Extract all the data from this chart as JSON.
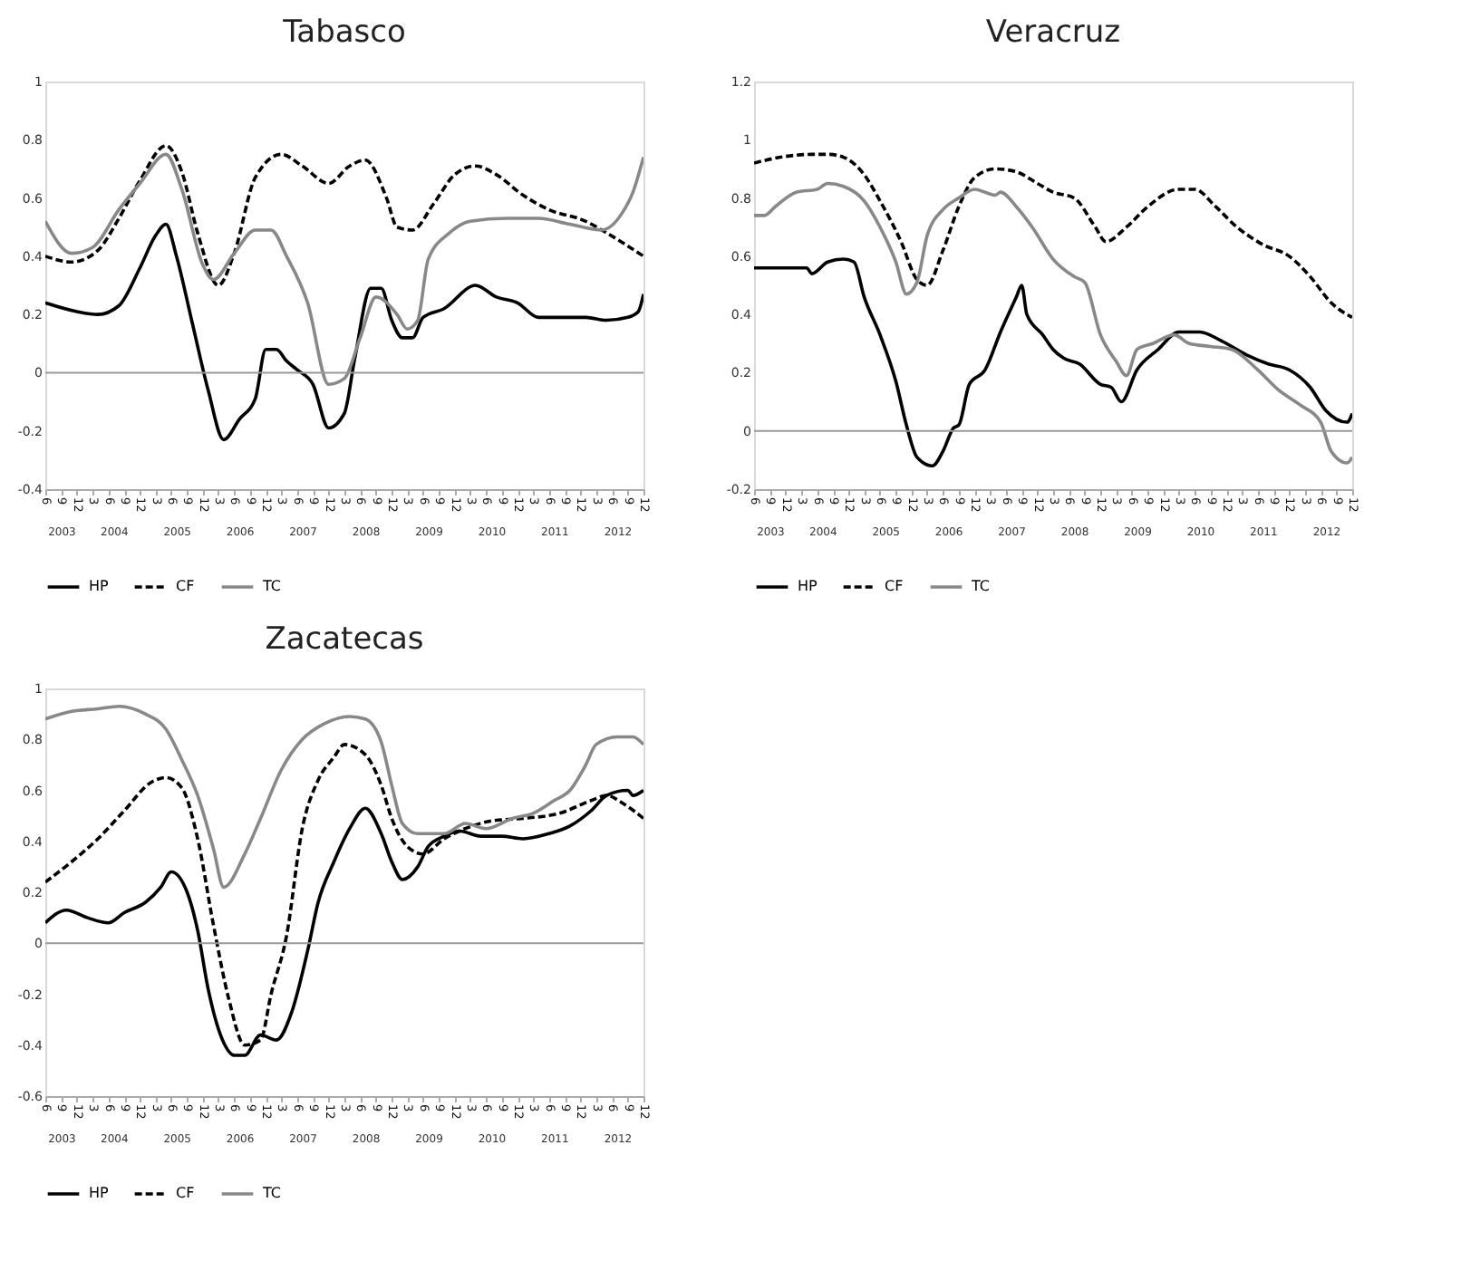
{
  "chart_data": [
    {
      "type": "line",
      "title": "Tabasco",
      "legend": "bottom",
      "ref_lines": [
        {
          "axis": "y",
          "value": 0
        }
      ],
      "xlim": [
        "2003-06",
        "2012-12"
      ],
      "ylim": [
        -0.4,
        1
      ],
      "yticks": [
        -0.4,
        -0.2,
        0,
        0.2,
        0.4,
        0.6,
        0.8,
        1
      ],
      "xticks": [
        {
          "value": "2003-06",
          "label": "6"
        },
        {
          "value": "2003-09",
          "label": "9"
        },
        {
          "value": "2003-12",
          "label": "12"
        },
        {
          "value": "2004-03",
          "label": "3"
        },
        {
          "value": "2004-06",
          "label": "6"
        },
        {
          "value": "2004-09",
          "label": "9"
        },
        {
          "value": "2004-12",
          "label": "12"
        },
        {
          "value": "2005-03",
          "label": "3"
        },
        {
          "value": "2005-06",
          "label": "6"
        },
        {
          "value": "2005-09",
          "label": "9"
        },
        {
          "value": "2005-12",
          "label": "12"
        },
        {
          "value": "2006-03",
          "label": "3"
        },
        {
          "value": "2006-06",
          "label": "6"
        },
        {
          "value": "2006-09",
          "label": "9"
        },
        {
          "value": "2006-12",
          "label": "12"
        },
        {
          "value": "2007-03",
          "label": "3"
        },
        {
          "value": "2007-06",
          "label": "6"
        },
        {
          "value": "2007-09",
          "label": "9"
        },
        {
          "value": "2007-12",
          "label": "12"
        },
        {
          "value": "2008-03",
          "label": "3"
        },
        {
          "value": "2008-06",
          "label": "6"
        },
        {
          "value": "2008-09",
          "label": "9"
        },
        {
          "value": "2008-12",
          "label": "12"
        },
        {
          "value": "2009-03",
          "label": "3"
        },
        {
          "value": "2009-06",
          "label": "6"
        },
        {
          "value": "2009-09",
          "label": "9"
        },
        {
          "value": "2009-12",
          "label": "12"
        },
        {
          "value": "2010-03",
          "label": "3"
        },
        {
          "value": "2010-06",
          "label": "6"
        },
        {
          "value": "2010-09",
          "label": "9"
        },
        {
          "value": "2010-12",
          "label": "12"
        },
        {
          "value": "2011-03",
          "label": "3"
        },
        {
          "value": "2011-06",
          "label": "6"
        },
        {
          "value": "2011-09",
          "label": "9"
        },
        {
          "value": "2011-12",
          "label": "12"
        },
        {
          "value": "2012-03",
          "label": "3"
        },
        {
          "value": "2012-06",
          "label": "6"
        },
        {
          "value": "2012-09",
          "label": "9"
        },
        {
          "value": "2012-12",
          "label": "12"
        }
      ],
      "x2lim": [
        "2003-06",
        "2012-12"
      ],
      "x2ticks": [
        {
          "value": "2003-09",
          "label": "2003"
        },
        {
          "value": "2004-07",
          "label": "2004"
        },
        {
          "value": "2005-07",
          "label": "2005"
        },
        {
          "value": "2006-07",
          "label": "2006"
        },
        {
          "value": "2007-07",
          "label": "2007"
        },
        {
          "value": "2008-07",
          "label": "2008"
        },
        {
          "value": "2009-07",
          "label": "2009"
        },
        {
          "value": "2010-07",
          "label": "2010"
        },
        {
          "value": "2011-07",
          "label": "2011"
        },
        {
          "value": "2012-07",
          "label": "2012"
        }
      ],
      "series": [
        {
          "name": "HP",
          "color": "#000000",
          "line_style": "solid",
          "x": [
            "2003-06",
            "2003-12",
            "2004-04",
            "2004-08",
            "2004-12",
            "2005-03",
            "2005-05",
            "2005-07",
            "2005-10",
            "2006-01",
            "2006-04",
            "2006-07",
            "2006-10",
            "2006-12",
            "2007-02",
            "2007-04",
            "2007-06",
            "2007-09",
            "2007-12",
            "2008-03",
            "2008-05",
            "2008-08",
            "2008-10",
            "2008-12",
            "2009-02",
            "2009-04",
            "2009-06",
            "2009-10",
            "2010-04",
            "2010-08",
            "2010-12",
            "2011-04",
            "2011-09",
            "2012-01",
            "2012-05",
            "2012-09",
            "2012-11",
            "2012-12"
          ],
          "values": [
            0.24,
            0.21,
            0.2,
            0.23,
            0.36,
            0.47,
            0.51,
            0.4,
            0.17,
            -0.06,
            -0.23,
            -0.16,
            -0.09,
            0.08,
            0.08,
            0.04,
            0.01,
            -0.04,
            -0.19,
            -0.14,
            0.05,
            0.29,
            0.29,
            0.18,
            0.12,
            0.12,
            0.19,
            0.22,
            0.3,
            0.26,
            0.24,
            0.19,
            0.19,
            0.19,
            0.18,
            0.19,
            0.21,
            0.27
          ]
        },
        {
          "name": "CF",
          "color": "#000000",
          "line_style": "dashed",
          "x": [
            "2003-06",
            "2003-11",
            "2004-04",
            "2004-08",
            "2004-12",
            "2005-05",
            "2005-08",
            "2005-11",
            "2006-03",
            "2006-06",
            "2006-10",
            "2007-03",
            "2007-07",
            "2007-12",
            "2008-04",
            "2008-07",
            "2008-11",
            "2009-01",
            "2009-04",
            "2009-08",
            "2009-12",
            "2010-04",
            "2010-08",
            "2011-01",
            "2011-06",
            "2012-01",
            "2012-05",
            "2012-12"
          ],
          "values": [
            0.4,
            0.38,
            0.42,
            0.53,
            0.66,
            0.78,
            0.69,
            0.48,
            0.3,
            0.41,
            0.67,
            0.75,
            0.71,
            0.65,
            0.71,
            0.73,
            0.6,
            0.5,
            0.49,
            0.58,
            0.68,
            0.71,
            0.68,
            0.61,
            0.56,
            0.52,
            0.48,
            0.4
          ]
        },
        {
          "name": "TC",
          "color": "#888888",
          "line_style": "solid",
          "x": [
            "2003-06",
            "2003-11",
            "2004-03",
            "2004-08",
            "2004-12",
            "2005-05",
            "2005-08",
            "2005-12",
            "2006-02",
            "2006-06",
            "2006-10",
            "2007-01",
            "2007-04",
            "2007-08",
            "2007-12",
            "2008-03",
            "2008-06",
            "2008-09",
            "2009-01",
            "2009-03",
            "2009-05",
            "2009-07",
            "2009-11",
            "2010-03",
            "2010-10",
            "2011-04",
            "2011-10",
            "2012-04",
            "2012-08",
            "2012-10",
            "2012-12"
          ],
          "values": [
            0.52,
            0.41,
            0.43,
            0.56,
            0.65,
            0.75,
            0.63,
            0.37,
            0.32,
            0.41,
            0.49,
            0.49,
            0.4,
            0.24,
            -0.04,
            -0.02,
            0.12,
            0.26,
            0.2,
            0.15,
            0.18,
            0.39,
            0.48,
            0.52,
            0.53,
            0.53,
            0.51,
            0.49,
            0.55,
            0.62,
            0.74
          ]
        }
      ]
    },
    {
      "type": "line",
      "title": "Veracruz",
      "legend": "bottom",
      "ref_lines": [
        {
          "axis": "y",
          "value": 0
        }
      ],
      "xlim": [
        "2003-06",
        "2012-12"
      ],
      "ylim": [
        -0.2,
        1.2
      ],
      "yticks": [
        -0.2,
        0,
        0.2,
        0.4,
        0.6,
        0.8,
        1,
        1.2
      ],
      "xticks": [
        {
          "value": "2003-06",
          "label": "6"
        },
        {
          "value": "2003-09",
          "label": "9"
        },
        {
          "value": "2003-12",
          "label": "12"
        },
        {
          "value": "2004-03",
          "label": "3"
        },
        {
          "value": "2004-06",
          "label": "6"
        },
        {
          "value": "2004-09",
          "label": "9"
        },
        {
          "value": "2004-12",
          "label": "12"
        },
        {
          "value": "2005-03",
          "label": "3"
        },
        {
          "value": "2005-06",
          "label": "6"
        },
        {
          "value": "2005-09",
          "label": "9"
        },
        {
          "value": "2005-12",
          "label": "12"
        },
        {
          "value": "2006-03",
          "label": "3"
        },
        {
          "value": "2006-06",
          "label": "6"
        },
        {
          "value": "2006-09",
          "label": "9"
        },
        {
          "value": "2006-12",
          "label": "12"
        },
        {
          "value": "2007-03",
          "label": "3"
        },
        {
          "value": "2007-06",
          "label": "6"
        },
        {
          "value": "2007-09",
          "label": "9"
        },
        {
          "value": "2007-12",
          "label": "12"
        },
        {
          "value": "2008-03",
          "label": "3"
        },
        {
          "value": "2008-06",
          "label": "6"
        },
        {
          "value": "2008-09",
          "label": "9"
        },
        {
          "value": "2008-12",
          "label": "12"
        },
        {
          "value": "2009-03",
          "label": "3"
        },
        {
          "value": "2009-06",
          "label": "6"
        },
        {
          "value": "2009-09",
          "label": "9"
        },
        {
          "value": "2009-12",
          "label": "12"
        },
        {
          "value": "2010-03",
          "label": "3"
        },
        {
          "value": "2010-06",
          "label": "6"
        },
        {
          "value": "2010-09",
          "label": "9"
        },
        {
          "value": "2010-12",
          "label": "12"
        },
        {
          "value": "2011-03",
          "label": "3"
        },
        {
          "value": "2011-06",
          "label": "6"
        },
        {
          "value": "2011-09",
          "label": "9"
        },
        {
          "value": "2011-12",
          "label": "12"
        },
        {
          "value": "2012-03",
          "label": "3"
        },
        {
          "value": "2012-06",
          "label": "6"
        },
        {
          "value": "2012-09",
          "label": "9"
        },
        {
          "value": "2012-12",
          "label": "12"
        }
      ],
      "x2lim": [
        "2003-06",
        "2012-12"
      ],
      "x2ticks": [
        {
          "value": "2003-09",
          "label": "2003"
        },
        {
          "value": "2004-07",
          "label": "2004"
        },
        {
          "value": "2005-07",
          "label": "2005"
        },
        {
          "value": "2006-07",
          "label": "2006"
        },
        {
          "value": "2007-07",
          "label": "2007"
        },
        {
          "value": "2008-07",
          "label": "2008"
        },
        {
          "value": "2009-07",
          "label": "2009"
        },
        {
          "value": "2010-07",
          "label": "2010"
        },
        {
          "value": "2011-07",
          "label": "2011"
        },
        {
          "value": "2012-07",
          "label": "2012"
        }
      ],
      "series": [
        {
          "name": "HP",
          "color": "#000000",
          "line_style": "solid",
          "x": [
            "2003-06",
            "2003-11",
            "2004-04",
            "2004-05",
            "2004-08",
            "2004-11",
            "2005-01",
            "2005-03",
            "2005-06",
            "2005-09",
            "2005-11",
            "2006-01",
            "2006-04",
            "2006-06",
            "2006-08",
            "2006-09",
            "2006-11",
            "2007-02",
            "2007-05",
            "2007-08",
            "2007-09",
            "2007-10",
            "2008-01",
            "2008-03",
            "2008-05",
            "2008-08",
            "2008-12",
            "2009-02",
            "2009-04",
            "2009-07",
            "2009-11",
            "2010-03",
            "2010-07",
            "2010-11",
            "2011-04",
            "2011-08",
            "2011-12",
            "2012-04",
            "2012-07",
            "2012-11",
            "2012-12"
          ],
          "values": [
            0.56,
            0.56,
            0.56,
            0.54,
            0.58,
            0.59,
            0.58,
            0.46,
            0.33,
            0.17,
            0.02,
            -0.09,
            -0.12,
            -0.07,
            0.01,
            0.02,
            0.16,
            0.21,
            0.34,
            0.46,
            0.5,
            0.4,
            0.33,
            0.28,
            0.25,
            0.23,
            0.16,
            0.15,
            0.1,
            0.21,
            0.28,
            0.34,
            0.34,
            0.31,
            0.26,
            0.23,
            0.21,
            0.15,
            0.07,
            0.03,
            0.06
          ]
        },
        {
          "name": "CF",
          "color": "#000000",
          "line_style": "dashed",
          "x": [
            "2003-06",
            "2003-11",
            "2004-05",
            "2004-08",
            "2004-11",
            "2005-03",
            "2005-06",
            "2005-10",
            "2006-01",
            "2006-03",
            "2006-06",
            "2006-09",
            "2006-12",
            "2007-04",
            "2007-08",
            "2007-12",
            "2008-03",
            "2008-07",
            "2008-11",
            "2009-01",
            "2009-05",
            "2009-09",
            "2010-03",
            "2010-06",
            "2010-10",
            "2011-02",
            "2011-07",
            "2011-12",
            "2012-04",
            "2012-08",
            "2012-12"
          ],
          "values": [
            0.92,
            0.94,
            0.95,
            0.95,
            0.94,
            0.88,
            0.79,
            0.65,
            0.52,
            0.5,
            0.62,
            0.77,
            0.87,
            0.9,
            0.89,
            0.85,
            0.82,
            0.8,
            0.7,
            0.65,
            0.7,
            0.77,
            0.83,
            0.83,
            0.77,
            0.7,
            0.64,
            0.6,
            0.53,
            0.44,
            0.39
          ]
        },
        {
          "name": "TC",
          "color": "#888888",
          "line_style": "solid",
          "x": [
            "2003-06",
            "2003-08",
            "2003-10",
            "2004-02",
            "2004-06",
            "2004-08",
            "2004-11",
            "2005-03",
            "2005-06",
            "2005-09",
            "2005-11",
            "2006-01",
            "2006-03",
            "2006-06",
            "2006-09",
            "2006-12",
            "2007-04",
            "2007-05",
            "2007-08",
            "2007-11",
            "2008-03",
            "2008-07",
            "2008-09",
            "2008-12",
            "2009-03",
            "2009-05",
            "2009-07",
            "2009-10",
            "2010-02",
            "2010-05",
            "2010-09",
            "2011-01",
            "2011-06",
            "2011-10",
            "2012-02",
            "2012-06",
            "2012-08",
            "2012-11",
            "2012-12"
          ],
          "values": [
            0.74,
            0.74,
            0.77,
            0.82,
            0.83,
            0.85,
            0.84,
            0.79,
            0.7,
            0.58,
            0.47,
            0.51,
            0.67,
            0.76,
            0.8,
            0.83,
            0.81,
            0.82,
            0.77,
            0.7,
            0.59,
            0.53,
            0.51,
            0.33,
            0.24,
            0.19,
            0.28,
            0.3,
            0.33,
            0.3,
            0.29,
            0.28,
            0.21,
            0.14,
            0.09,
            0.03,
            -0.07,
            -0.11,
            -0.09
          ]
        }
      ]
    },
    {
      "type": "line",
      "title": "Zacatecas",
      "legend": "bottom",
      "ref_lines": [
        {
          "axis": "y",
          "value": 0
        }
      ],
      "xlim": [
        "2003-06",
        "2012-12"
      ],
      "ylim": [
        -0.6,
        1
      ],
      "yticks": [
        -0.6,
        -0.4,
        -0.2,
        0,
        0.2,
        0.4,
        0.6,
        0.8,
        1
      ],
      "xticks": [
        {
          "value": "2003-06",
          "label": "6"
        },
        {
          "value": "2003-09",
          "label": "9"
        },
        {
          "value": "2003-12",
          "label": "12"
        },
        {
          "value": "2004-03",
          "label": "3"
        },
        {
          "value": "2004-06",
          "label": "6"
        },
        {
          "value": "2004-09",
          "label": "9"
        },
        {
          "value": "2004-12",
          "label": "12"
        },
        {
          "value": "2005-03",
          "label": "3"
        },
        {
          "value": "2005-06",
          "label": "6"
        },
        {
          "value": "2005-09",
          "label": "9"
        },
        {
          "value": "2005-12",
          "label": "12"
        },
        {
          "value": "2006-03",
          "label": "3"
        },
        {
          "value": "2006-06",
          "label": "6"
        },
        {
          "value": "2006-09",
          "label": "9"
        },
        {
          "value": "2006-12",
          "label": "12"
        },
        {
          "value": "2007-03",
          "label": "3"
        },
        {
          "value": "2007-06",
          "label": "6"
        },
        {
          "value": "2007-09",
          "label": "9"
        },
        {
          "value": "2007-12",
          "label": "12"
        },
        {
          "value": "2008-03",
          "label": "3"
        },
        {
          "value": "2008-06",
          "label": "6"
        },
        {
          "value": "2008-09",
          "label": "9"
        },
        {
          "value": "2008-12",
          "label": "12"
        },
        {
          "value": "2009-03",
          "label": "3"
        },
        {
          "value": "2009-06",
          "label": "6"
        },
        {
          "value": "2009-09",
          "label": "9"
        },
        {
          "value": "2009-12",
          "label": "12"
        },
        {
          "value": "2010-03",
          "label": "3"
        },
        {
          "value": "2010-06",
          "label": "6"
        },
        {
          "value": "2010-09",
          "label": "9"
        },
        {
          "value": "2010-12",
          "label": "12"
        },
        {
          "value": "2011-03",
          "label": "3"
        },
        {
          "value": "2011-06",
          "label": "6"
        },
        {
          "value": "2011-09",
          "label": "9"
        },
        {
          "value": "2011-12",
          "label": "12"
        },
        {
          "value": "2012-03",
          "label": "3"
        },
        {
          "value": "2012-06",
          "label": "6"
        },
        {
          "value": "2012-09",
          "label": "9"
        },
        {
          "value": "2012-12",
          "label": "12"
        }
      ],
      "x2lim": [
        "2003-06",
        "2012-12"
      ],
      "x2ticks": [
        {
          "value": "2003-09",
          "label": "2003"
        },
        {
          "value": "2004-07",
          "label": "2004"
        },
        {
          "value": "2005-07",
          "label": "2005"
        },
        {
          "value": "2006-07",
          "label": "2006"
        },
        {
          "value": "2007-07",
          "label": "2007"
        },
        {
          "value": "2008-07",
          "label": "2008"
        },
        {
          "value": "2009-07",
          "label": "2009"
        },
        {
          "value": "2010-07",
          "label": "2010"
        },
        {
          "value": "2011-07",
          "label": "2011"
        },
        {
          "value": "2012-07",
          "label": "2012"
        }
      ],
      "series": [
        {
          "name": "HP",
          "color": "#000000",
          "line_style": "solid",
          "x": [
            "2003-06",
            "2003-10",
            "2004-02",
            "2004-06",
            "2004-09",
            "2005-01",
            "2005-04",
            "2005-06",
            "2005-09",
            "2005-11",
            "2006-01",
            "2006-04",
            "2006-06",
            "2006-08",
            "2006-11",
            "2007-02",
            "2007-05",
            "2007-08",
            "2007-10",
            "2008-01",
            "2008-04",
            "2008-07",
            "2008-10",
            "2008-12",
            "2009-02",
            "2009-05",
            "2009-07",
            "2009-10",
            "2010-01",
            "2010-05",
            "2010-09",
            "2011-01",
            "2011-06",
            "2011-10",
            "2012-02",
            "2012-05",
            "2012-09",
            "2012-10",
            "2012-12"
          ],
          "values": [
            0.08,
            0.13,
            0.1,
            0.08,
            0.12,
            0.16,
            0.22,
            0.28,
            0.2,
            0.05,
            -0.18,
            -0.39,
            -0.44,
            -0.44,
            -0.36,
            -0.38,
            -0.27,
            -0.03,
            0.16,
            0.32,
            0.45,
            0.53,
            0.43,
            0.32,
            0.25,
            0.3,
            0.38,
            0.42,
            0.44,
            0.42,
            0.42,
            0.41,
            0.43,
            0.46,
            0.52,
            0.58,
            0.6,
            0.58,
            0.6
          ]
        },
        {
          "name": "CF",
          "color": "#000000",
          "line_style": "dashed",
          "x": [
            "2003-06",
            "2003-11",
            "2004-04",
            "2004-09",
            "2005-02",
            "2005-05",
            "2005-08",
            "2005-11",
            "2006-02",
            "2006-05",
            "2006-08",
            "2006-11",
            "2007-01",
            "2007-04",
            "2007-07",
            "2007-10",
            "2008-01",
            "2008-03",
            "2008-07",
            "2008-10",
            "2008-12",
            "2009-03",
            "2009-06",
            "2009-10",
            "2010-02",
            "2010-07",
            "2011-01",
            "2011-08",
            "2012-02",
            "2012-05",
            "2012-08",
            "2012-12"
          ],
          "values": [
            0.24,
            0.32,
            0.41,
            0.52,
            0.63,
            0.65,
            0.61,
            0.41,
            0.07,
            -0.22,
            -0.4,
            -0.38,
            -0.2,
            0.03,
            0.45,
            0.64,
            0.73,
            0.78,
            0.74,
            0.62,
            0.49,
            0.38,
            0.35,
            0.41,
            0.45,
            0.48,
            0.49,
            0.51,
            0.56,
            0.58,
            0.55,
            0.49
          ]
        },
        {
          "name": "TC",
          "color": "#888888",
          "line_style": "solid",
          "x": [
            "2003-06",
            "2003-11",
            "2004-04",
            "2004-08",
            "2005-01",
            "2005-05",
            "2005-08",
            "2005-11",
            "2006-02",
            "2006-04",
            "2006-08",
            "2006-11",
            "2007-03",
            "2007-07",
            "2007-11",
            "2008-04",
            "2008-07",
            "2008-10",
            "2008-12",
            "2009-02",
            "2009-05",
            "2009-10",
            "2010-02",
            "2010-06",
            "2010-11",
            "2011-03",
            "2011-07",
            "2011-10",
            "2012-01",
            "2012-03",
            "2012-07",
            "2012-10",
            "2012-12"
          ],
          "values": [
            0.88,
            0.91,
            0.92,
            0.93,
            0.9,
            0.84,
            0.72,
            0.58,
            0.37,
            0.22,
            0.35,
            0.49,
            0.68,
            0.8,
            0.86,
            0.89,
            0.88,
            0.79,
            0.62,
            0.47,
            0.43,
            0.43,
            0.47,
            0.45,
            0.49,
            0.51,
            0.56,
            0.6,
            0.7,
            0.78,
            0.81,
            0.81,
            0.78
          ]
        }
      ]
    }
  ]
}
